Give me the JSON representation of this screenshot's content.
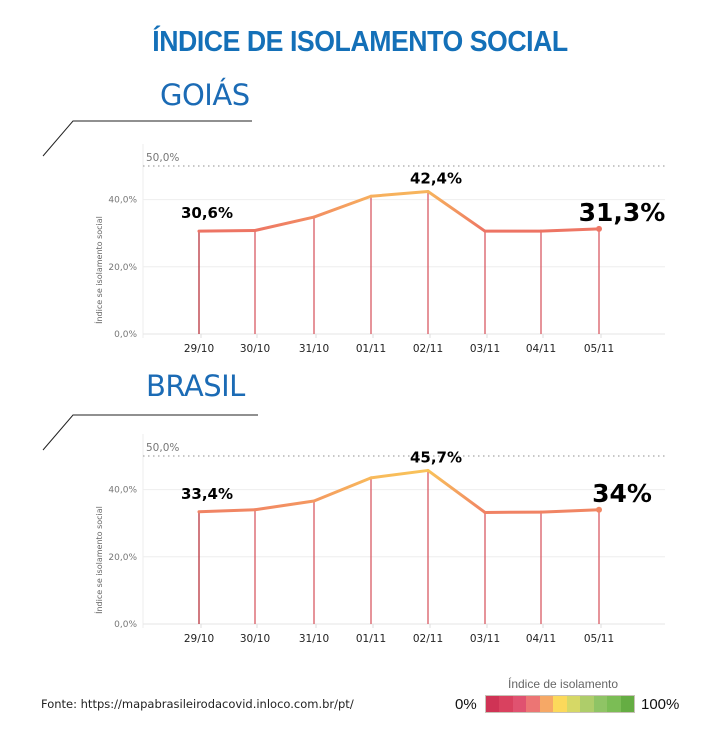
{
  "title": "ÍNDICE DE ISOLAMENTO SOCIAL",
  "source": "Fonte: https://mapabrasileirodacovid.inloco.com.br/pt/",
  "legend": {
    "title": "Índice de isolamento",
    "min_label": "0%",
    "max_label": "100%",
    "colors": [
      "#cf3355",
      "#d9415f",
      "#e05270",
      "#ec7574",
      "#f6a866",
      "#fcd95b",
      "#d6d866",
      "#aecd6a",
      "#8fc465",
      "#7bbd55",
      "#65ad43"
    ]
  },
  "chart_data": [
    {
      "type": "line",
      "title": "GOIÁS",
      "xlabel": "",
      "ylabel": "Índice se isolamento social",
      "categories": [
        "29/10",
        "30/10",
        "31/10",
        "01/11",
        "02/11",
        "03/11",
        "04/11",
        "05/11"
      ],
      "values": [
        30.6,
        30.8,
        34.8,
        41.0,
        42.4,
        30.6,
        30.6,
        31.3
      ],
      "ylim": [
        0,
        50
      ],
      "yticks": [
        "0,0%",
        "20,0%",
        "40,0%"
      ],
      "ytick_values": [
        0,
        20,
        40
      ],
      "reference_line": {
        "value": 50,
        "label": "50,0%"
      },
      "annotations": [
        {
          "index": 0,
          "label": "30,6%",
          "style": "peak"
        },
        {
          "index": 4,
          "label": "42,4%",
          "style": "peak"
        },
        {
          "index": 7,
          "label": "31,3%",
          "style": "last"
        }
      ],
      "grid": true,
      "legend": "none"
    },
    {
      "type": "line",
      "title": "BRASIL",
      "xlabel": "",
      "ylabel": "Índice se isolamento social",
      "categories": [
        "29/10",
        "30/10",
        "31/10",
        "01/11",
        "02/11",
        "03/11",
        "04/11",
        "05/11"
      ],
      "values": [
        33.4,
        34.0,
        36.6,
        43.5,
        45.7,
        33.2,
        33.3,
        34.0
      ],
      "ylim": [
        0,
        50
      ],
      "yticks": [
        "0,0%",
        "20,0%",
        "40,0%"
      ],
      "ytick_values": [
        0,
        20,
        40
      ],
      "reference_line": {
        "value": 50,
        "label": "50,0%"
      },
      "annotations": [
        {
          "index": 0,
          "label": "33,4%",
          "style": "peak"
        },
        {
          "index": 4,
          "label": "45,7%",
          "style": "peak"
        },
        {
          "index": 7,
          "label": "34%",
          "style": "last"
        }
      ],
      "grid": true,
      "legend": "none"
    }
  ]
}
